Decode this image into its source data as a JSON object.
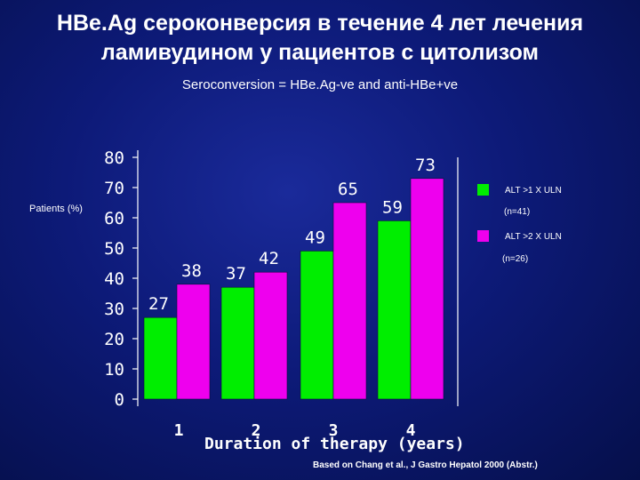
{
  "title": "HBe.Ag сероконверсия в течение 4 лет лечения ламивудином у пациентов с цитолизом",
  "subtitle": "Seroconversion = HBe.Ag-ve and anti-HBe+ve",
  "source": "Based on Chang et al., J Gastro Hepatol 2000 (Abstr.)",
  "chart_data": {
    "type": "bar",
    "ylabel": "Patients (%)",
    "xlabel": "Duration of therapy (years)",
    "categories": [
      "1",
      "2",
      "3",
      "4"
    ],
    "ylim": [
      0,
      80
    ],
    "yticks": [
      "0",
      "10",
      "20",
      "30",
      "40",
      "50",
      "60",
      "70",
      "80"
    ],
    "grid": false,
    "legend_position": "right",
    "series": [
      {
        "name": "ALT >1 X ULN",
        "note": "(n=41)",
        "color": "#00ee00",
        "values": [
          27,
          37,
          49,
          59
        ]
      },
      {
        "name": "ALT >2 X ULN",
        "note": "(n=26)",
        "color": "#ee00ee",
        "values": [
          38,
          42,
          65,
          73
        ]
      }
    ]
  }
}
